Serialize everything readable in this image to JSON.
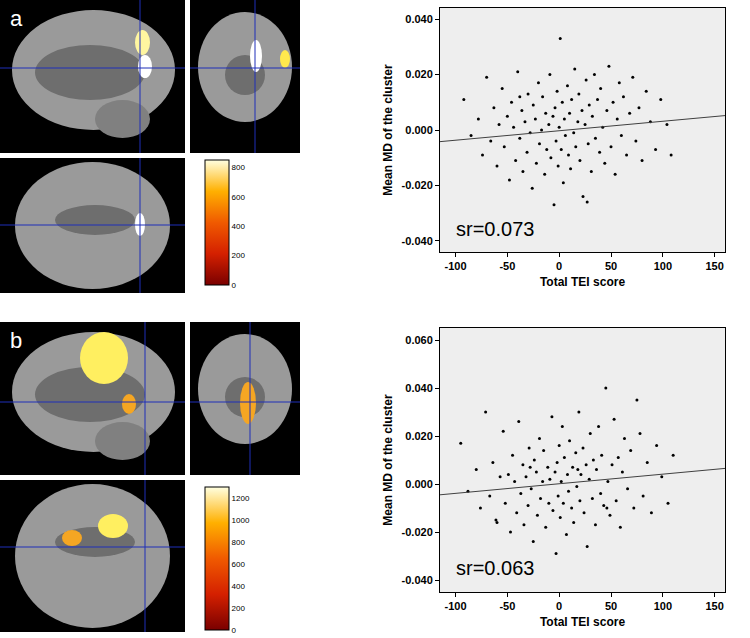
{
  "chart_data": [
    {
      "type": "scatter",
      "label": "a",
      "x_label": "Total TEI score",
      "y_label": "Mean MD of the cluster",
      "annotations": [
        "sr=0.073"
      ],
      "color": "#000000",
      "marker": "circle",
      "grid": false,
      "xlim": [
        -115,
        160
      ],
      "xticks": [
        -100,
        -50,
        0,
        50,
        100,
        150
      ],
      "ylim": [
        -0.044,
        0.044
      ],
      "yticks": [
        {
          "value": -0.04,
          "label": "-0.040"
        },
        {
          "value": -0.02,
          "label": "-0.020"
        },
        {
          "value": 0,
          "label": "0.000"
        },
        {
          "value": 0.02,
          "label": "0.020"
        },
        {
          "value": 0.04,
          "label": "0.040"
        }
      ],
      "fit_line": {
        "x": [
          -115,
          160
        ],
        "y": [
          -0.0042,
          0.0052
        ]
      },
      "colorbar": {
        "range": [
          0,
          850
        ],
        "ticks": [
          0,
          200,
          400,
          600,
          800
        ]
      },
      "x": [
        -92,
        -85,
        -78,
        -74,
        -70,
        -66,
        -63,
        -60,
        -58,
        -55,
        -53,
        -50,
        -48,
        -46,
        -44,
        -42,
        -40,
        -38,
        -36,
        -35,
        -33,
        -31,
        -30,
        -28,
        -26,
        -25,
        -23,
        -22,
        -20,
        -19,
        -17,
        -16,
        -14,
        -13,
        -12,
        -10,
        -9,
        -8,
        -6,
        -5,
        -4,
        -3,
        -2,
        -1,
        0,
        1,
        2,
        3,
        4,
        5,
        6,
        8,
        9,
        10,
        11,
        12,
        14,
        15,
        16,
        18,
        19,
        20,
        22,
        23,
        25,
        26,
        28,
        29,
        31,
        32,
        34,
        35,
        37,
        39,
        40,
        42,
        44,
        46,
        48,
        50,
        52,
        54,
        56,
        58,
        60,
        62,
        65,
        68,
        71,
        74,
        77,
        80,
        84,
        88,
        93,
        98,
        104,
        108,
        -38,
        27
      ],
      "values": [
        0.011,
        -0.002,
        0.004,
        -0.009,
        0.019,
        -0.004,
        0.008,
        -0.013,
        0.002,
        0.015,
        -0.006,
        0.005,
        -0.018,
        0.01,
        0.001,
        -0.011,
        0.021,
        -0.003,
        0.007,
        -0.015,
        0.003,
        -0.008,
        0.013,
        -0.001,
        -0.021,
        0.009,
        0.004,
        -0.012,
        0.017,
        -0.005,
        0.0,
        0.012,
        -0.016,
        0.006,
        -0.007,
        0.002,
        0.02,
        -0.01,
        0.005,
        -0.027,
        0.008,
        -0.004,
        0.014,
        -0.013,
        0.001,
        0.033,
        -0.007,
        0.01,
        -0.019,
        0.004,
        -0.002,
        0.016,
        -0.009,
        0.006,
        -0.014,
        0.011,
        -0.001,
        0.022,
        -0.006,
        0.003,
        0.013,
        -0.011,
        0.007,
        -0.024,
        0.002,
        0.018,
        -0.005,
        0.009,
        -0.015,
        0.005,
        0.02,
        -0.003,
        0.011,
        -0.008,
        0.015,
        0.001,
        -0.012,
        0.007,
        0.023,
        -0.006,
        0.01,
        -0.016,
        0.004,
        0.017,
        -0.002,
        0.012,
        -0.009,
        0.006,
        0.019,
        -0.004,
        0.008,
        -0.011,
        0.014,
        0.003,
        -0.007,
        0.011,
        0.002,
        -0.009,
        0.012,
        -0.026
      ]
    },
    {
      "type": "scatter",
      "label": "b",
      "x_label": "Total TEI score",
      "y_label": "Mean MD of the cluster",
      "annotations": [
        "sr=0.063"
      ],
      "color": "#000000",
      "marker": "circle",
      "grid": false,
      "xlim": [
        -115,
        160
      ],
      "xticks": [
        -100,
        -50,
        0,
        50,
        100,
        150
      ],
      "ylim": [
        -0.045,
        0.065
      ],
      "yticks": [
        {
          "value": -0.04,
          "label": "-0.040"
        },
        {
          "value": -0.02,
          "label": "-0.020"
        },
        {
          "value": 0,
          "label": "0.000"
        },
        {
          "value": 0.02,
          "label": "0.020"
        },
        {
          "value": 0.04,
          "label": "0.040"
        },
        {
          "value": 0.06,
          "label": "0.060"
        }
      ],
      "fit_line": {
        "x": [
          -115,
          160
        ],
        "y": [
          -0.0045,
          0.0065
        ]
      },
      "colorbar": {
        "range": [
          0,
          1300
        ],
        "ticks": [
          0,
          200,
          400,
          600,
          800,
          1000,
          1200
        ]
      },
      "x": [
        -95,
        -88,
        -80,
        -76,
        -71,
        -67,
        -64,
        -61,
        -57,
        -54,
        -52,
        -49,
        -47,
        -45,
        -43,
        -41,
        -39,
        -37,
        -35,
        -34,
        -32,
        -30,
        -29,
        -27,
        -25,
        -24,
        -22,
        -21,
        -19,
        -18,
        -16,
        -15,
        -13,
        -11,
        -10,
        -9,
        -7,
        -6,
        -4,
        -3,
        -2,
        -1,
        0,
        1,
        2,
        3,
        4,
        5,
        7,
        8,
        9,
        10,
        12,
        13,
        14,
        16,
        17,
        19,
        20,
        21,
        23,
        24,
        26,
        27,
        29,
        30,
        32,
        33,
        35,
        36,
        38,
        40,
        41,
        43,
        45,
        47,
        49,
        51,
        53,
        55,
        57,
        59,
        61,
        63,
        66,
        69,
        72,
        75,
        78,
        81,
        85,
        89,
        94,
        99,
        105,
        110,
        -60,
        -28,
        18,
        46
      ],
      "values": [
        0.017,
        -0.003,
        0.006,
        -0.01,
        0.03,
        -0.005,
        0.009,
        -0.015,
        0.003,
        0.022,
        -0.008,
        0.004,
        -0.02,
        0.012,
        0.001,
        -0.012,
        0.026,
        -0.004,
        0.008,
        -0.017,
        0.003,
        -0.009,
        0.015,
        -0.002,
        -0.024,
        0.01,
        0.005,
        -0.013,
        0.019,
        -0.006,
        0.001,
        0.014,
        -0.018,
        0.007,
        -0.008,
        0.002,
        0.028,
        -0.011,
        0.005,
        -0.029,
        0.009,
        -0.005,
        0.016,
        -0.014,
        0.001,
        0.024,
        -0.008,
        0.011,
        -0.021,
        0.004,
        -0.003,
        0.018,
        -0.01,
        0.007,
        -0.016,
        0.013,
        -0.001,
        0.03,
        -0.007,
        0.004,
        0.015,
        -0.012,
        0.008,
        -0.026,
        0.002,
        0.021,
        -0.006,
        0.01,
        -0.017,
        0.006,
        0.024,
        -0.004,
        0.012,
        -0.009,
        0.04,
        0.001,
        -0.013,
        0.008,
        0.027,
        -0.007,
        0.011,
        -0.018,
        0.005,
        0.019,
        -0.002,
        0.014,
        -0.01,
        0.035,
        0.021,
        -0.005,
        0.009,
        -0.012,
        0.016,
        0.003,
        -0.008,
        0.012,
        -0.016,
        0.007,
        0.006,
        -0.01
      ]
    }
  ]
}
